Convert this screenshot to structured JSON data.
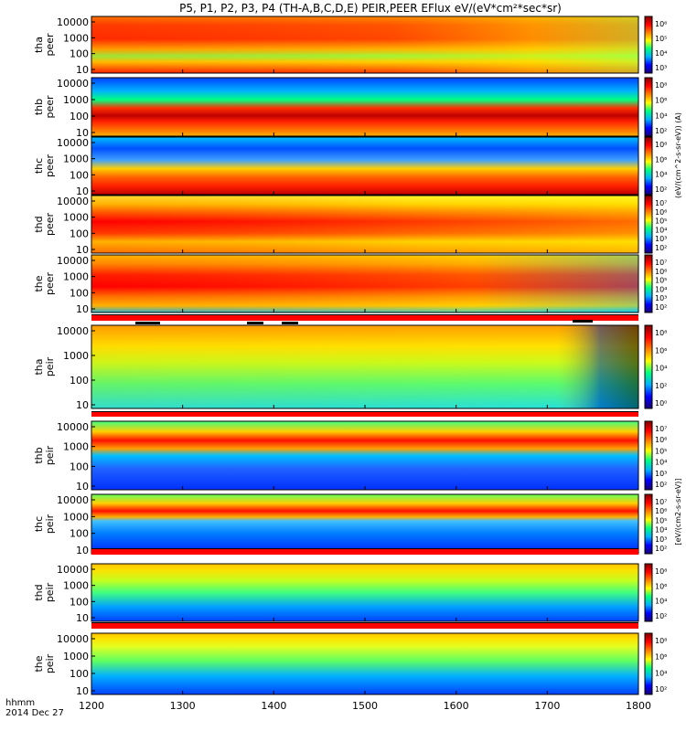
{
  "title": "P5, P1, P2, P3, P4 (TH-A,B,C,D,E) PEIR,PEER EFlux eV/(eV*cm²*sec*sr)",
  "time_axis": {
    "format_label": "hhmm",
    "date_label": "2014 Dec 27",
    "ticks": [
      "1200",
      "1300",
      "1400",
      "1500",
      "1600",
      "1700",
      "1800"
    ]
  },
  "colorbar": {
    "label_upper": "(eV/(cm^2-s-sr-eV)) (A)",
    "label_lower": "[eV/(cm2-s-sr-eV)]",
    "colormap": [
      "#1a0070",
      "#0000ff",
      "#00b0ff",
      "#00ff80",
      "#ffff00",
      "#ff8000",
      "#ff0000",
      "#800000"
    ]
  },
  "chart_data": [
    {
      "type": "heatmap",
      "panel": "tha peer",
      "ylabel": [
        "tha",
        "peer"
      ],
      "y_scale": "log",
      "y_ticks": [
        "10",
        "100",
        "1000",
        "10000"
      ],
      "cbar_ticks": [
        "10⁶",
        "10⁵",
        "10⁴",
        "10³"
      ],
      "x_range": [
        "1200",
        "1800"
      ]
    },
    {
      "type": "heatmap",
      "panel": "thb peer",
      "ylabel": [
        "thb",
        "peer"
      ],
      "y_scale": "log",
      "y_ticks": [
        "10",
        "100",
        "1000",
        "10000"
      ],
      "cbar_ticks": [
        "10⁸",
        "10⁶",
        "10⁴",
        "10²"
      ],
      "x_range": [
        "1200",
        "1800"
      ]
    },
    {
      "type": "heatmap",
      "panel": "thc peer",
      "ylabel": [
        "thc",
        "peer"
      ],
      "y_scale": "log",
      "y_ticks": [
        "10",
        "100",
        "1000",
        "10000"
      ],
      "cbar_ticks": [
        "10⁸",
        "10⁶",
        "10⁴",
        "10²"
      ],
      "x_range": [
        "1200",
        "1800"
      ]
    },
    {
      "type": "heatmap",
      "panel": "thd peer",
      "ylabel": [
        "thd",
        "peer"
      ],
      "y_scale": "log",
      "y_ticks": [
        "10",
        "100",
        "1000",
        "10000"
      ],
      "cbar_ticks": [
        "10⁷",
        "10⁶",
        "10⁵",
        "10⁴",
        "10³",
        "10²"
      ],
      "x_range": [
        "1200",
        "1800"
      ]
    },
    {
      "type": "heatmap",
      "panel": "the peer",
      "ylabel": [
        "the",
        "peer"
      ],
      "y_scale": "log",
      "y_ticks": [
        "10",
        "100",
        "1000",
        "10000"
      ],
      "cbar_ticks": [
        "10⁷",
        "10⁶",
        "10⁵",
        "10⁴",
        "10³",
        "10²"
      ],
      "x_range": [
        "1200",
        "1800"
      ]
    },
    {
      "type": "heatmap",
      "panel": "tha peir",
      "ylabel": [
        "tha",
        "peir"
      ],
      "y_scale": "log",
      "y_ticks": [
        "10",
        "100",
        "1000",
        "10000"
      ],
      "cbar_ticks": [
        "10⁸",
        "10⁶",
        "10⁴",
        "10²",
        "10⁰"
      ],
      "x_range": [
        "1200",
        "1800"
      ]
    },
    {
      "type": "heatmap",
      "panel": "thb peir",
      "ylabel": [
        "thb",
        "peir"
      ],
      "y_scale": "log",
      "y_ticks": [
        "10",
        "100",
        "1000",
        "10000"
      ],
      "cbar_ticks": [
        "10⁷",
        "10⁶",
        "10⁵",
        "10⁴",
        "10³",
        "10²"
      ],
      "x_range": [
        "1200",
        "1800"
      ]
    },
    {
      "type": "heatmap",
      "panel": "thc peir",
      "ylabel": [
        "thc",
        "peir"
      ],
      "y_scale": "log",
      "y_ticks": [
        "10",
        "100",
        "1000",
        "10000"
      ],
      "cbar_ticks": [
        "10⁷",
        "10⁶",
        "10⁵",
        "10⁴",
        "10³",
        "10²"
      ],
      "x_range": [
        "1200",
        "1800"
      ]
    },
    {
      "type": "heatmap",
      "panel": "thd peir",
      "ylabel": [
        "thd",
        "peir"
      ],
      "y_scale": "log",
      "y_ticks": [
        "10",
        "100",
        "1000",
        "10000"
      ],
      "cbar_ticks": [
        "10⁸",
        "10⁶",
        "10⁴",
        "10²"
      ],
      "x_range": [
        "1200",
        "1800"
      ]
    },
    {
      "type": "heatmap",
      "panel": "the peir",
      "ylabel": [
        "the",
        "peir"
      ],
      "y_scale": "log",
      "y_ticks": [
        "10",
        "100",
        "1000",
        "10000"
      ],
      "cbar_ticks": [
        "10⁸",
        "10⁶",
        "10⁴",
        "10²"
      ],
      "x_range": [
        "1200",
        "1800"
      ]
    }
  ]
}
